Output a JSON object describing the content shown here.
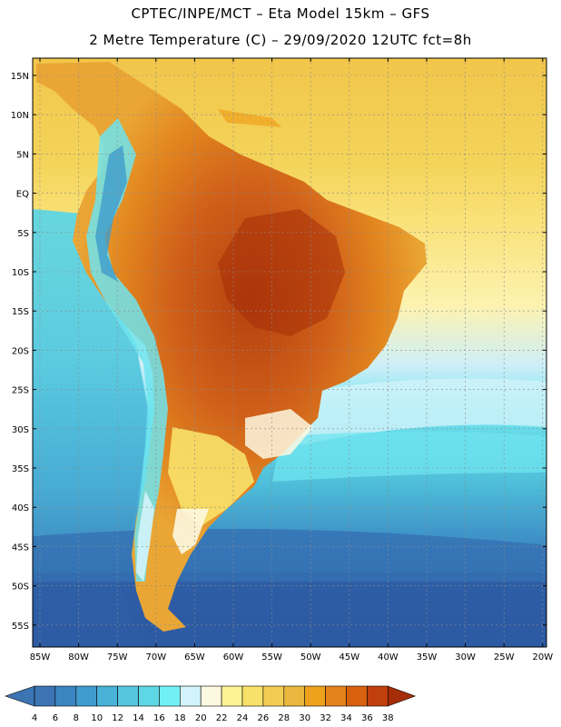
{
  "header": {
    "line1": "CPTEC/INPE/MCT –  Eta Model 15km – GFS",
    "line2": "2 Metre Temperature (C) – 29/09/2020 12UTC fct=8h"
  },
  "axes": {
    "lat_labels": [
      "15N",
      "10N",
      "5N",
      "EQ",
      "5S",
      "10S",
      "15S",
      "20S",
      "25S",
      "30S",
      "35S",
      "40S",
      "45S",
      "50S",
      "55S"
    ],
    "lon_labels": [
      "85W",
      "80W",
      "75W",
      "70W",
      "65W",
      "60W",
      "55W",
      "50W",
      "45W",
      "40W",
      "35W",
      "30W",
      "25W",
      "20W"
    ]
  },
  "colorbar": {
    "ticks": [
      "4",
      "6",
      "8",
      "10",
      "12",
      "14",
      "16",
      "18",
      "20",
      "22",
      "24",
      "26",
      "28",
      "30",
      "32",
      "34",
      "36",
      "38"
    ],
    "colors": [
      "#3c74b4",
      "#3b86c2",
      "#3f9ccc",
      "#48b2d7",
      "#54c6dd",
      "#5fd6e4",
      "#70f0f4",
      "#d2f3fa",
      "#fdf8e0",
      "#fdf394",
      "#f8e16a",
      "#f2cc55",
      "#eab83e",
      "#eea11c",
      "#e4821a",
      "#d7610e",
      "#c03f0c",
      "#a52e08"
    ]
  },
  "colors": {
    "ocean_deep": "#2e5fa6",
    "ocean_mid": "#3a8fc7",
    "ocean_light": "#55c7de",
    "warm_ocean": "#f1c348",
    "land_warm": "#e4821a",
    "land_hot": "#b94410"
  }
}
